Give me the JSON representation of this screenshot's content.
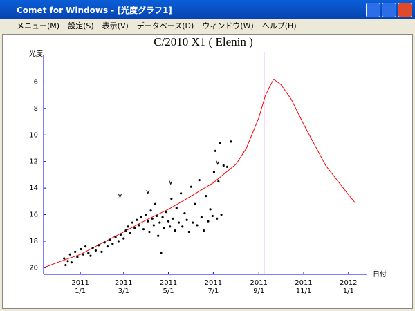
{
  "window": {
    "title": "Comet for Windows - [光度グラフ1]"
  },
  "menu": [
    "メニュー(M)",
    "設定(S)",
    "表示(V)",
    "データベース(D)",
    "ウィンドウ(W)",
    "ヘルプ(H)"
  ],
  "chart_data": {
    "type": "scatter",
    "title": "C/2010 X1 ( Elenin )",
    "y_label": "光度",
    "x_label": "日付",
    "xlim": [
      "2010-11-12",
      "2012-01-20"
    ],
    "ylim": [
      20.5,
      4
    ],
    "yticks": [
      6,
      8,
      10,
      12,
      14,
      16,
      18,
      20
    ],
    "xticks": [
      {
        "value": "2011-01-01",
        "label": "2011 1/1"
      },
      {
        "value": "2011-03-01",
        "label": "2011 3/1"
      },
      {
        "value": "2011-05-01",
        "label": "2011 5/1"
      },
      {
        "value": "2011-07-01",
        "label": "2011 7/1"
      },
      {
        "value": "2011-09-01",
        "label": "2011 9/1"
      },
      {
        "value": "2011-11-01",
        "label": "2011 11/1"
      },
      {
        "value": "2012-01-01",
        "label": "2012 1/1"
      }
    ],
    "axis_color": "#0000ff",
    "marker_line": {
      "x": "2011-09-08",
      "color": "#ff00ff"
    },
    "curve": {
      "color": "#ff0000",
      "x": [
        "2010-11-12",
        "2010-12-01",
        "2011-01-01",
        "2011-02-01",
        "2011-03-01",
        "2011-04-01",
        "2011-05-01",
        "2011-06-01",
        "2011-07-01",
        "2011-08-01",
        "2011-08-15",
        "2011-09-01",
        "2011-09-10",
        "2011-09-21",
        "2011-10-01",
        "2011-10-15",
        "2011-11-01",
        "2011-12-01",
        "2012-01-01",
        "2012-01-10"
      ],
      "values": [
        20.0,
        19.6,
        19.0,
        18.1,
        17.3,
        16.4,
        15.6,
        14.6,
        13.6,
        12.2,
        11.0,
        8.7,
        7.0,
        5.8,
        6.2,
        7.3,
        9.2,
        12.3,
        14.5,
        15.1
      ]
    },
    "observations": {
      "color": "#000000",
      "x": [
        "2010-12-10",
        "2010-12-12",
        "2010-12-15",
        "2010-12-18",
        "2010-12-20",
        "2010-12-25",
        "2010-12-28",
        "2011-01-02",
        "2011-01-05",
        "2011-01-08",
        "2011-01-12",
        "2011-01-15",
        "2011-01-18",
        "2011-01-22",
        "2011-01-26",
        "2011-01-30",
        "2011-02-03",
        "2011-02-07",
        "2011-02-10",
        "2011-02-14",
        "2011-02-18",
        "2011-02-22",
        "2011-02-25",
        "2011-03-01",
        "2011-03-04",
        "2011-03-07",
        "2011-03-10",
        "2011-03-13",
        "2011-03-16",
        "2011-03-19",
        "2011-03-22",
        "2011-03-25",
        "2011-03-28",
        "2011-03-31",
        "2011-04-03",
        "2011-04-05",
        "2011-04-07",
        "2011-04-09",
        "2011-04-11",
        "2011-04-13",
        "2011-04-15",
        "2011-04-17",
        "2011-04-19",
        "2011-04-21",
        "2011-04-23",
        "2011-04-25",
        "2011-04-28",
        "2011-05-01",
        "2011-05-03",
        "2011-05-05",
        "2011-05-07",
        "2011-05-10",
        "2011-05-12",
        "2011-05-15",
        "2011-05-18",
        "2011-05-20",
        "2011-05-23",
        "2011-05-26",
        "2011-05-29",
        "2011-06-01",
        "2011-06-03",
        "2011-06-06",
        "2011-06-09",
        "2011-06-12",
        "2011-06-15",
        "2011-06-18",
        "2011-06-21",
        "2011-06-24",
        "2011-06-27",
        "2011-06-30",
        "2011-07-02",
        "2011-07-04",
        "2011-07-06",
        "2011-07-08",
        "2011-07-10",
        "2011-07-12",
        "2011-07-15",
        "2011-07-20",
        "2011-07-25"
      ],
      "values": [
        19.3,
        19.8,
        19.5,
        19.0,
        19.6,
        18.8,
        19.2,
        18.6,
        19.0,
        18.4,
        18.9,
        19.1,
        18.5,
        18.7,
        18.3,
        18.8,
        18.1,
        18.4,
        17.9,
        18.2,
        17.7,
        18.0,
        17.5,
        17.8,
        17.2,
        16.9,
        17.4,
        16.6,
        17.0,
        16.4,
        16.8,
        16.2,
        17.1,
        16.0,
        16.5,
        17.3,
        15.7,
        16.3,
        16.8,
        15.2,
        16.1,
        17.6,
        16.6,
        18.9,
        16.2,
        17.0,
        15.8,
        16.5,
        16.9,
        14.8,
        16.3,
        17.2,
        15.5,
        16.6,
        14.4,
        16.9,
        15.9,
        16.4,
        17.3,
        13.9,
        16.6,
        15.2,
        16.8,
        13.4,
        16.2,
        17.2,
        14.6,
        16.5,
        15.6,
        16.1,
        12.8,
        11.2,
        16.3,
        13.5,
        10.6,
        16.0,
        12.3,
        12.4,
        10.5
      ]
    },
    "upper_limits": {
      "color": "#000000",
      "x": [
        "2011-02-24",
        "2011-04-03",
        "2011-05-04",
        "2011-07-07"
      ],
      "values": [
        14.6,
        14.3,
        13.6,
        12.1
      ]
    }
  }
}
